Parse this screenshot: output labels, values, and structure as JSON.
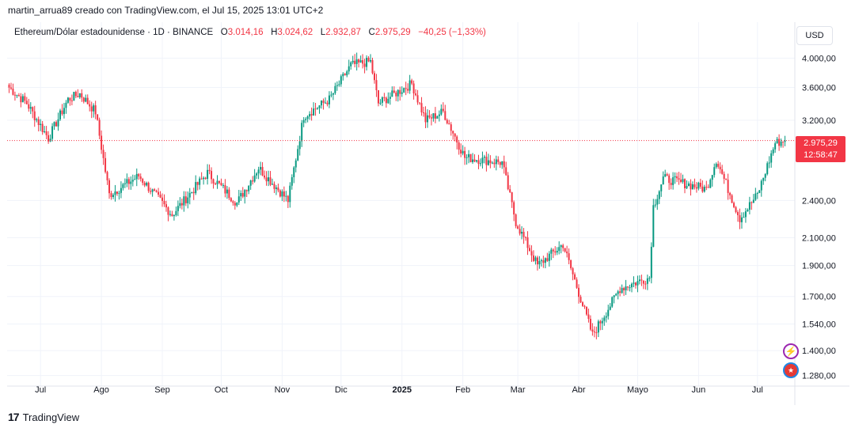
{
  "caption": "martin_arrua89 creado con TradingView.com, el Jul 15, 2025 13:01 UTC+2",
  "legend": {
    "symbol": "Ethereum/Dólar estadounidense · 1D · BINANCE",
    "o_label": "O",
    "o_value": "3.014,16",
    "h_label": "H",
    "h_value": "3.024,62",
    "l_label": "L",
    "l_value": "2.932,87",
    "c_label": "C",
    "c_value": "2.975,29",
    "change": "−40,25 (−1,33%)"
  },
  "currency": "USD",
  "price_tag": {
    "price": "2.975,29",
    "countdown": "12:58:47"
  },
  "footer": {
    "brand": "TradingView"
  },
  "icons": {
    "alert": "lightning-alert-icon",
    "flag": "country-flag-icon",
    "logo": "tradingview-logo-icon"
  },
  "colors": {
    "up": "#089981",
    "down": "#f23645",
    "grid": "#f0f3fa",
    "last_price_line": "#f23645"
  },
  "chart_data": {
    "type": "candlestick",
    "scale": "log",
    "ylim": [
      1250,
      4300
    ],
    "y_ticks": [
      {
        "value": 4000,
        "label": "4.000,00"
      },
      {
        "value": 3600,
        "label": "3.600,00"
      },
      {
        "value": 3200,
        "label": "3.200,00"
      },
      {
        "value": 2400,
        "label": "2.400,00"
      },
      {
        "value": 2100,
        "label": "2.100,00"
      },
      {
        "value": 1900,
        "label": "1.900,00"
      },
      {
        "value": 1700,
        "label": "1.700,00"
      },
      {
        "value": 1540,
        "label": "1.540,00"
      },
      {
        "value": 1400,
        "label": "1.400,00"
      },
      {
        "value": 1280,
        "label": "1.280,00"
      }
    ],
    "x_ticks": [
      {
        "date": "2024-07-01",
        "label": "Jul"
      },
      {
        "date": "2024-08-01",
        "label": "Ago"
      },
      {
        "date": "2024-09-01",
        "label": "Sep"
      },
      {
        "date": "2024-10-01",
        "label": "Oct"
      },
      {
        "date": "2024-11-01",
        "label": "Nov"
      },
      {
        "date": "2024-12-01",
        "label": "Dic"
      },
      {
        "date": "2025-01-01",
        "label": "2025"
      },
      {
        "date": "2025-02-01",
        "label": "Feb"
      },
      {
        "date": "2025-03-01",
        "label": "Mar"
      },
      {
        "date": "2025-04-01",
        "label": "Abr"
      },
      {
        "date": "2025-05-01",
        "label": "Mayo"
      },
      {
        "date": "2025-06-01",
        "label": "Jun"
      },
      {
        "date": "2025-07-01",
        "label": "Jul"
      }
    ],
    "last_price": 2975.29,
    "close_path": [
      [
        "2024-06-15",
        3600
      ],
      [
        "2024-06-24",
        3400
      ],
      [
        "2024-07-05",
        3000
      ],
      [
        "2024-07-15",
        3450
      ],
      [
        "2024-07-21",
        3520
      ],
      [
        "2024-07-29",
        3300
      ],
      [
        "2024-08-05",
        2450
      ],
      [
        "2024-08-20",
        2620
      ],
      [
        "2024-09-06",
        2280
      ],
      [
        "2024-09-24",
        2650
      ],
      [
        "2024-10-09",
        2380
      ],
      [
        "2024-10-20",
        2700
      ],
      [
        "2024-11-04",
        2400
      ],
      [
        "2024-11-12",
        3250
      ],
      [
        "2024-11-25",
        3450
      ],
      [
        "2024-12-06",
        3900
      ],
      [
        "2024-12-16",
        3950
      ],
      [
        "2024-12-20",
        3400
      ],
      [
        "2025-01-06",
        3650
      ],
      [
        "2025-01-13",
        3200
      ],
      [
        "2025-01-22",
        3300
      ],
      [
        "2025-02-02",
        2800
      ],
      [
        "2025-02-21",
        2750
      ],
      [
        "2025-02-28",
        2220
      ],
      [
        "2025-03-11",
        1900
      ],
      [
        "2025-03-24",
        2050
      ],
      [
        "2025-04-08",
        1480
      ],
      [
        "2025-04-22",
        1750
      ],
      [
        "2025-05-07",
        1820
      ],
      [
        "2025-05-09",
        2350
      ],
      [
        "2025-05-14",
        2600
      ],
      [
        "2025-06-05",
        2500
      ],
      [
        "2025-06-10",
        2780
      ],
      [
        "2025-06-22",
        2250
      ],
      [
        "2025-07-01",
        2450
      ],
      [
        "2025-07-10",
        2950
      ],
      [
        "2025-07-15",
        2975.29
      ]
    ]
  }
}
